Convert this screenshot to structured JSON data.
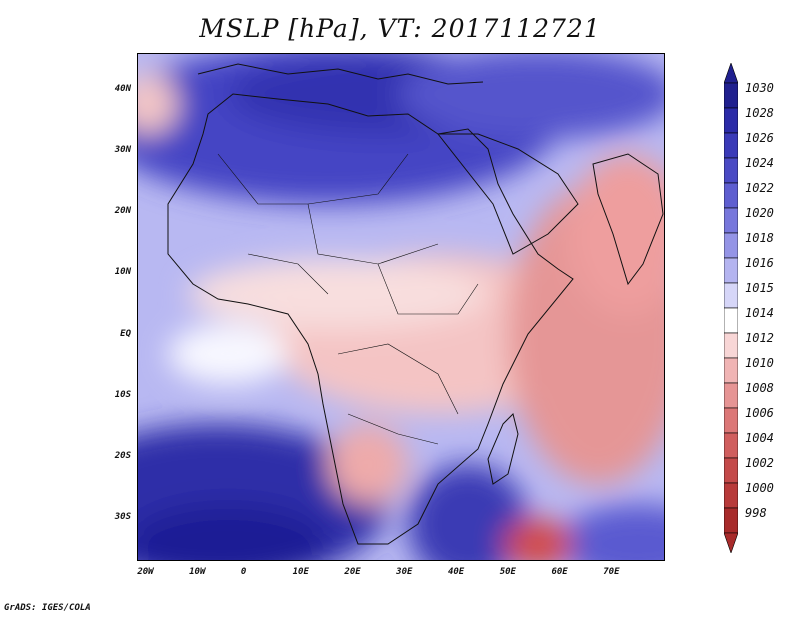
{
  "title": "MSLP [hPa], VT: 2017112721",
  "credit": "GrADS: IGES/COLA",
  "lat_labels": [
    "40N",
    "30N",
    "20N",
    "10N",
    "EQ",
    "10S",
    "20S",
    "30S"
  ],
  "lat_values": [
    40,
    30,
    20,
    10,
    0,
    -10,
    -20,
    -30
  ],
  "lon_labels": [
    "20W",
    "10W",
    "0",
    "10E",
    "20E",
    "30E",
    "40E",
    "50E",
    "60E",
    "70E"
  ],
  "lon_values": [
    -20,
    -10,
    0,
    10,
    20,
    30,
    40,
    50,
    60,
    70
  ],
  "map_extent": {
    "lon": [
      -22,
      80
    ],
    "lat": [
      -37,
      46
    ]
  },
  "colorbar": {
    "levels": [
      "1030",
      "1028",
      "1026",
      "1024",
      "1022",
      "1020",
      "1018",
      "1016",
      "1015",
      "1014",
      "1012",
      "1010",
      "1008",
      "1006",
      "1004",
      "1002",
      "1000",
      "998"
    ],
    "colors": [
      "#20208f",
      "#2b2ba8",
      "#3a3ab8",
      "#4a4ac4",
      "#5e5ed0",
      "#7777dc",
      "#9494e6",
      "#b4b4f0",
      "#d6d6f8",
      "#ffffff",
      "#f8d6d6",
      "#f0b4b4",
      "#e69494",
      "#dc7777",
      "#d05e5e",
      "#c44a4a",
      "#b83a3a",
      "#a82b2b"
    ]
  }
}
